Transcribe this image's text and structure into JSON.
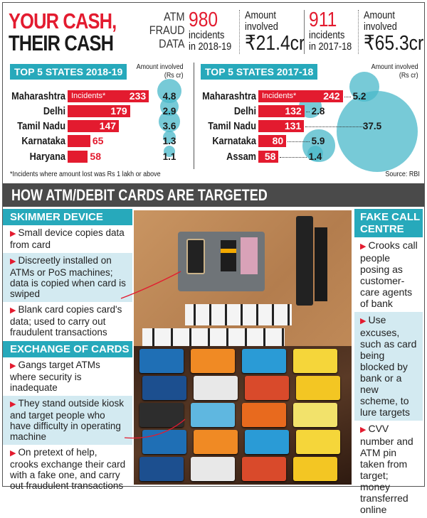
{
  "title": {
    "line1": "YOUR CASH,",
    "line2": "THEIR CASH"
  },
  "summary": {
    "label": [
      "ATM",
      "FRAUD",
      "DATA"
    ],
    "y2018_19": {
      "incidents": "980",
      "incidents_label": "incidents",
      "period": "in 2018-19",
      "amount_label": [
        "Amount",
        "involved"
      ],
      "amount": "₹21.4cr"
    },
    "y2017_18": {
      "incidents": "911",
      "incidents_label": "incidents",
      "period": "in 2017-18",
      "amount_label": [
        "Amount",
        "involved"
      ],
      "amount": "₹65.3cr"
    }
  },
  "chart_data": [
    {
      "type": "bar",
      "title": "TOP 5 STATES 2018-19",
      "bar_label": "Incidents*",
      "bubble_label": "Amount involved (Rs cr)",
      "categories": [
        "Maharashtra",
        "Delhi",
        "Tamil Nadu",
        "Karnataka",
        "Haryana"
      ],
      "incidents": [
        233,
        179,
        147,
        65,
        58
      ],
      "amount": [
        4.8,
        2.9,
        3.6,
        1.3,
        1.1
      ]
    },
    {
      "type": "bar",
      "title": "TOP 5 STATES 2017-18",
      "bar_label": "Incidents*",
      "bubble_label": "Amount involved (Rs cr)",
      "categories": [
        "Maharashtra",
        "Delhi",
        "Tamil Nadu",
        "Karnataka",
        "Assam"
      ],
      "incidents": [
        242,
        132,
        131,
        80,
        58
      ],
      "amount": [
        5.2,
        2.8,
        37.5,
        5.9,
        1.4
      ]
    }
  ],
  "ai_label": [
    "Amount involved",
    "(Rs cr)"
  ],
  "footnote": "*Incidents where amount lost was Rs 1 lakh or above",
  "source": "Source: RBI",
  "colors": {
    "red": "#e31b2f",
    "teal": "#27a9bb",
    "bubble": "#4ab8ca",
    "band": "#4a4a4a"
  },
  "band": "HOW ATM/DEBIT CARDS ARE TARGETED",
  "skimmer": {
    "header": "SKIMMER DEVICE",
    "items": [
      "Small device copies data from card",
      "Discreetly installed on ATMs or PoS machines; data is copied when card is swiped",
      "Blank card copies card's data; used to carry out fraudulent transactions"
    ]
  },
  "exchange": {
    "header": "EXCHANGE OF CARDS",
    "items": [
      "Gangs target ATMs where security is inadequate",
      "They stand outside kiosk and target people who have difficulty in operating machine",
      "On pretext of help, crooks exchange their card with a fake one, and carry out fraudulent transactions"
    ]
  },
  "fakecall": {
    "header": "FAKE CALL CENTRE",
    "items": [
      "Crooks call people posing as customer-care agents of bank",
      "Use excuses, such as card being blocked by bank or a new scheme, to lure targets",
      "CVV number and ATM pin taken from target; money transferred online"
    ]
  },
  "arrow_icon": "triangle-right"
}
